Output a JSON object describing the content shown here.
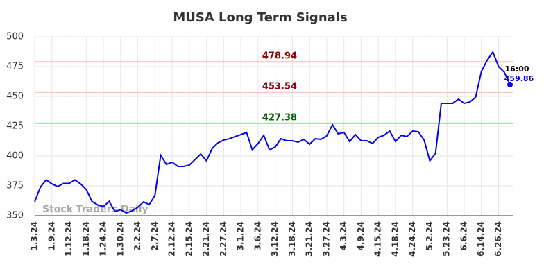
{
  "chart_data": {
    "type": "line",
    "title": "MUSA Long Term Signals",
    "categories": [
      "1.3.24",
      null,
      null,
      "1.9.24",
      null,
      null,
      "1.12.24",
      null,
      null,
      "1.18.24",
      null,
      null,
      "1.24.24",
      null,
      null,
      "1.30.24",
      null,
      null,
      "2.2.24",
      null,
      null,
      "2.7.24",
      null,
      null,
      "2.12.24",
      null,
      null,
      "2.15.24",
      null,
      null,
      "2.21.24",
      null,
      null,
      "2.27.24",
      null,
      null,
      "3.1.24",
      null,
      null,
      "3.6.24",
      null,
      null,
      "3.12.24",
      null,
      null,
      "3.18.24",
      null,
      null,
      "3.21.24",
      null,
      null,
      "3.27.24",
      null,
      null,
      "4.3.24",
      null,
      null,
      "4.9.24",
      null,
      null,
      "4.15.24",
      null,
      null,
      "4.18.24",
      null,
      null,
      "4.24.24",
      null,
      null,
      "5.2.24",
      null,
      null,
      "5.23.24",
      null,
      null,
      "6.6.24",
      null,
      null,
      "6.14.24",
      null,
      null,
      "6.26.24",
      null,
      null
    ],
    "series": [
      {
        "name": "MUSA",
        "color": "#0000ee",
        "values": [
          361.6,
          374,
          380,
          376.7,
          374.4,
          377,
          377,
          380,
          376.7,
          372,
          362,
          359,
          357.6,
          362,
          353.5,
          355,
          352.3,
          354,
          357,
          361.6,
          359.3,
          367,
          400.6,
          393,
          394.8,
          391.3,
          391.3,
          392.4,
          397,
          401.7,
          396,
          406.4,
          411,
          413.4,
          414.5,
          416.3,
          418,
          419.8,
          405.2,
          410.5,
          417.4,
          405.2,
          407.6,
          414.5,
          412.8,
          412.8,
          411.6,
          414,
          409.9,
          414.5,
          414,
          416.9,
          426.2,
          418.6,
          419.8,
          412.2,
          418,
          412.8,
          412.8,
          410.5,
          415.7,
          417.4,
          420.9,
          412.2,
          417.4,
          416.3,
          420.9,
          420.3,
          413.4,
          396,
          402.3,
          444.2,
          444.2,
          444.2,
          447.7,
          444.2,
          445.3,
          449.4,
          470.9,
          480.2,
          487.2,
          475,
          470.3,
          459.86
        ]
      }
    ],
    "hlines": [
      {
        "value": 478.94,
        "color": "#ffbbbb",
        "label_color": "#8b0000"
      },
      {
        "value": 453.54,
        "color": "#ffbbbb",
        "label_color": "#8b0000"
      },
      {
        "value": 427.38,
        "color": "#99dd99",
        "label_color": "#006400"
      }
    ],
    "last_time": "16:00",
    "watermark": "Stock Traders Daily",
    "ylim": [
      350,
      500
    ],
    "yticks": [
      350,
      375,
      400,
      425,
      450,
      475,
      500
    ],
    "grid": true
  }
}
